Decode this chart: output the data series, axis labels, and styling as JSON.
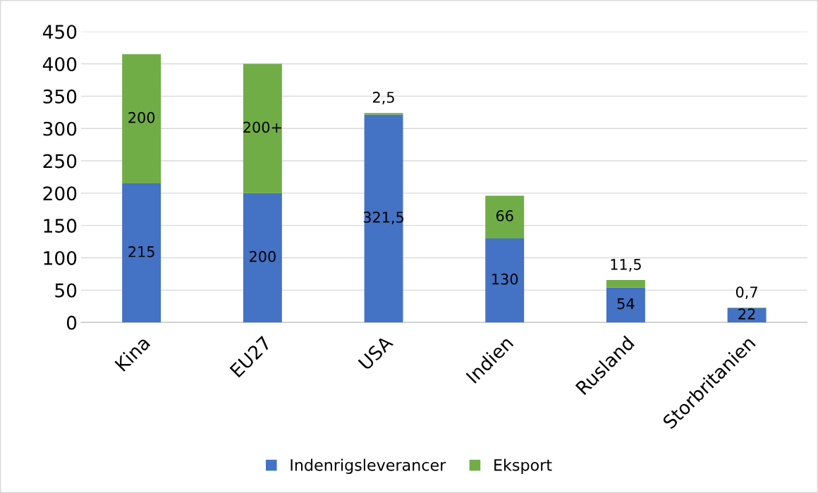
{
  "chart_data": {
    "type": "bar",
    "stacked": true,
    "categories": [
      "Kina",
      "EU27",
      "USA",
      "Indien",
      "Rusland",
      "Storbritanien"
    ],
    "series": [
      {
        "name": "Indenrigsleverancer",
        "color": "#4472c4",
        "values": [
          215,
          200,
          321.5,
          130,
          54,
          22
        ],
        "value_labels": [
          "215",
          "200",
          "321,5",
          "130",
          "54",
          "22"
        ]
      },
      {
        "name": "Eksport",
        "color": "#70ad47",
        "values": [
          200,
          200,
          2.5,
          66,
          11.5,
          0.7
        ],
        "value_labels": [
          "200",
          "200+",
          "2,5",
          "66",
          "11,5",
          "0,7"
        ]
      }
    ],
    "ylim": [
      0,
      450
    ],
    "yticks": [
      0,
      50,
      100,
      150,
      200,
      250,
      300,
      350,
      400,
      450
    ],
    "grid": "y",
    "legend": "bottom"
  }
}
